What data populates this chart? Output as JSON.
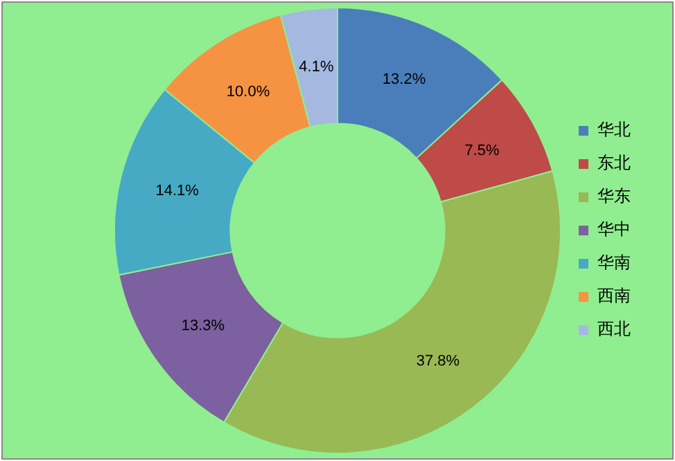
{
  "chart_data": {
    "type": "donut",
    "categories": [
      "华北",
      "东北",
      "华东",
      "华中",
      "华南",
      "西南",
      "西北"
    ],
    "values": [
      13.2,
      7.5,
      37.8,
      13.3,
      14.1,
      10.0,
      4.1
    ],
    "value_labels": [
      "13.2%",
      "7.5%",
      "37.8%",
      "13.3%",
      "14.1%",
      "10.0%",
      "4.1%"
    ],
    "colors": [
      "#4a7ebb",
      "#be4b48",
      "#98b954",
      "#7d60a0",
      "#46aac5",
      "#f59342",
      "#a4b8e0"
    ],
    "legend": "right"
  }
}
